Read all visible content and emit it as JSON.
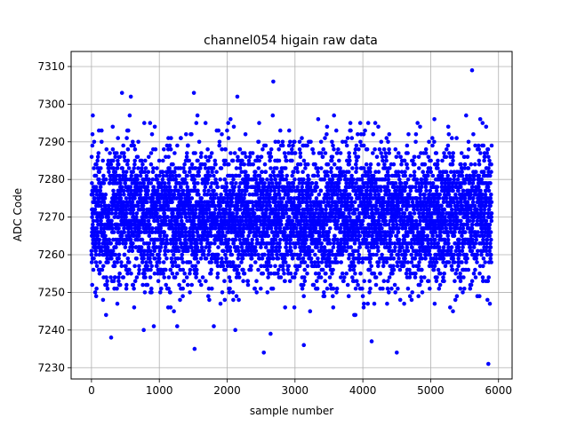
{
  "chart_data": {
    "type": "scatter",
    "title": "channel054 higain raw data",
    "xlabel": "sample number",
    "ylabel": "ADC Code",
    "xlim": [
      -300,
      6200
    ],
    "ylim": [
      7227,
      7314
    ],
    "xticks": [
      0,
      1000,
      2000,
      3000,
      4000,
      5000,
      6000
    ],
    "yticks": [
      7230,
      7240,
      7250,
      7260,
      7270,
      7280,
      7290,
      7300,
      7310
    ],
    "grid": true,
    "marker_color": "#0000ff",
    "n_points": 5900,
    "distribution_summary": {
      "center": 7270,
      "spread_sd": 9,
      "core_range": [
        7255,
        7285
      ]
    },
    "highlighted_points": [
      {
        "x": 450,
        "y": 7303
      },
      {
        "x": 580,
        "y": 7302
      },
      {
        "x": 1510,
        "y": 7303
      },
      {
        "x": 2150,
        "y": 7302
      },
      {
        "x": 2680,
        "y": 7306
      },
      {
        "x": 5610,
        "y": 7309
      },
      {
        "x": 2540,
        "y": 7234
      },
      {
        "x": 2640,
        "y": 7239
      },
      {
        "x": 1520,
        "y": 7235
      },
      {
        "x": 4500,
        "y": 7234
      },
      {
        "x": 5850,
        "y": 7231
      },
      {
        "x": 3130,
        "y": 7236
      },
      {
        "x": 4130,
        "y": 7237
      },
      {
        "x": 290,
        "y": 7238
      },
      {
        "x": 770,
        "y": 7240
      },
      {
        "x": 2120,
        "y": 7240
      }
    ]
  }
}
